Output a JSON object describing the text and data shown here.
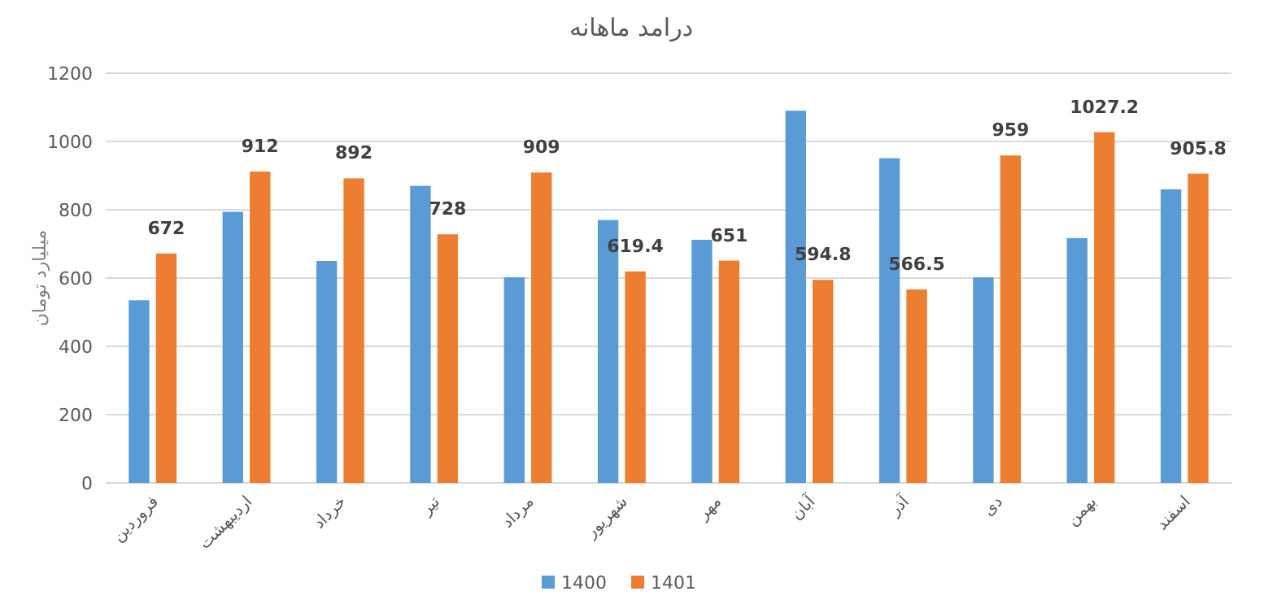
{
  "chart_data": {
    "type": "bar",
    "title": "درامد ماهانه",
    "ylabel": "میلیارد تومان",
    "categories": [
      "فروردین",
      "اردیبهشت",
      "خرداد",
      "تیر",
      "مرداد",
      "شهریور",
      "مهر",
      "آبان",
      "آذر",
      "دی",
      "بهمن",
      "اسفند"
    ],
    "series": [
      {
        "name": "1400",
        "color": "#5b9bd5",
        "values": [
          535,
          794,
          650,
          870,
          602,
          770,
          712,
          1090,
          951,
          602,
          717,
          860
        ]
      },
      {
        "name": "1401",
        "color": "#ed7d31",
        "values": [
          672,
          912,
          892,
          728,
          909,
          619.4,
          651,
          594.8,
          566.5,
          959,
          1027.2,
          905.8
        ],
        "value_labels": [
          "672",
          "912",
          "892",
          "728",
          "909",
          "619.4",
          "651",
          "594.8",
          "566.5",
          "959",
          "1027.2",
          "905.8"
        ]
      }
    ],
    "ylim": [
      0,
      1200
    ],
    "yticks": [
      0,
      200,
      400,
      600,
      800,
      1000,
      1200
    ],
    "grid": "y",
    "legend": "bottom"
  }
}
